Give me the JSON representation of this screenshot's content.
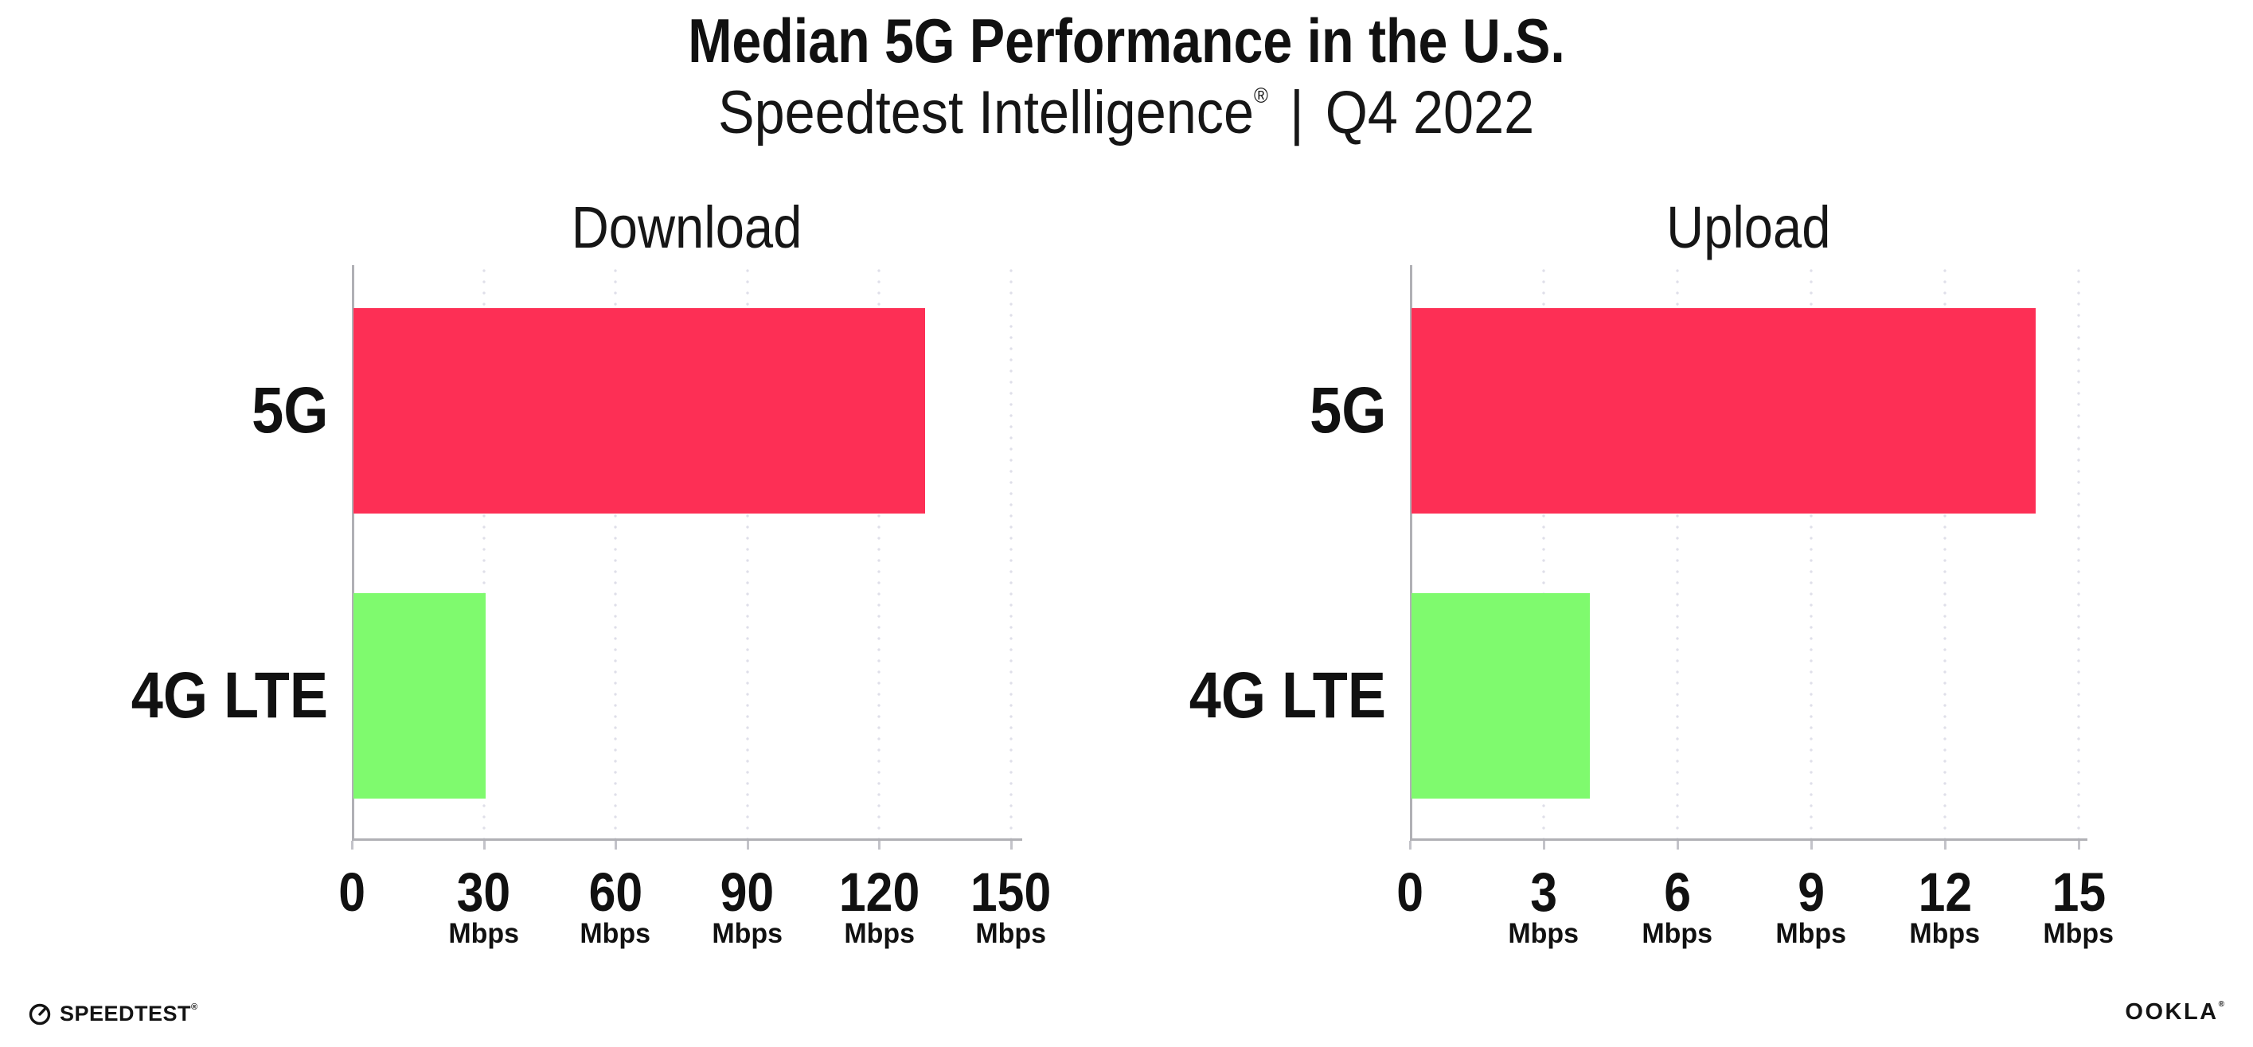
{
  "header": {
    "title": "Median 5G Performance in the U.S.",
    "subtitle_brand": "Speedtest Intelligence",
    "subtitle_reg": "®",
    "subtitle_separator": "|",
    "subtitle_period": "Q4 2022"
  },
  "chart_data": [
    {
      "type": "bar",
      "orientation": "horizontal",
      "title": "Download",
      "categories": [
        "5G",
        "4G LTE"
      ],
      "values": [
        130,
        30
      ],
      "unit": "Mbps",
      "xlim": [
        0,
        150
      ],
      "xticks": [
        0,
        30,
        60,
        90,
        120,
        150
      ],
      "tick_unit_label": "Mbps",
      "unit_under_zero_tick": false,
      "grid": "dotted-vertical",
      "legend": "none",
      "bar_colors": [
        "#fd2f55",
        "#7ffa6e"
      ]
    },
    {
      "type": "bar",
      "orientation": "horizontal",
      "title": "Upload",
      "categories": [
        "5G",
        "4G LTE"
      ],
      "values": [
        14,
        4
      ],
      "unit": "Mbps",
      "xlim": [
        0,
        15
      ],
      "xticks": [
        0,
        3,
        6,
        9,
        12,
        15
      ],
      "tick_unit_label": "Mbps",
      "unit_under_zero_tick": false,
      "grid": "dotted-vertical",
      "legend": "none",
      "bar_colors": [
        "#fd2f55",
        "#7ffa6e"
      ]
    }
  ],
  "colors": {
    "bar_5g": "#fd2f55",
    "bar_4g_lte": "#7ffa6e",
    "axis": "#b0b0b5",
    "gridline_dot": "#dfdfe9",
    "text": "#111111"
  },
  "footer": {
    "speedtest": {
      "label": "SPEEDTEST",
      "mark": "®"
    },
    "ookla": {
      "label": "OOKLA",
      "mark": "®"
    }
  }
}
